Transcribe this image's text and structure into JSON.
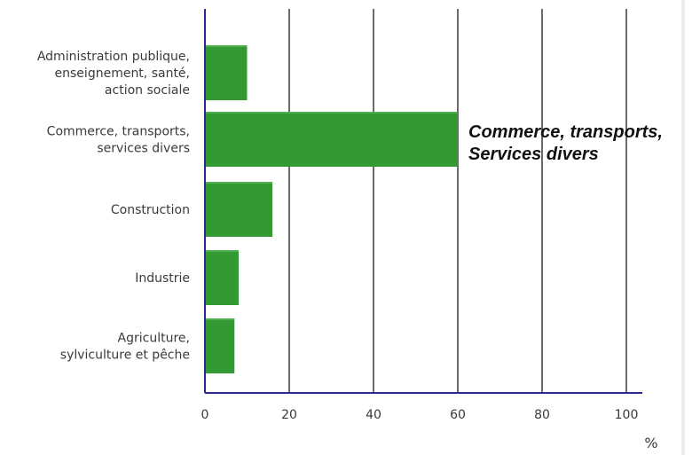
{
  "chart_data": {
    "type": "bar",
    "orientation": "horizontal",
    "categories": [
      [
        "Administration publique,",
        "enseignement, santé,",
        "action sociale"
      ],
      [
        "Commerce, transports,",
        "services divers"
      ],
      [
        "Construction"
      ],
      [
        "Industrie"
      ],
      [
        "Agriculture,",
        "sylviculture et pêche"
      ]
    ],
    "values": [
      10,
      60,
      16,
      8,
      7
    ],
    "xlim": [
      0,
      100
    ],
    "xticks": [
      "0",
      "20",
      "40",
      "60",
      "80",
      "100"
    ],
    "xlabel": "%",
    "grid": "vertical",
    "annotation": [
      "Commerce, transports,",
      "Services divers"
    ],
    "colors": {
      "bar": "#339933",
      "bar_top": "#4fae4f",
      "axis": "#2b2b8f",
      "grid": "#1a1a1a"
    }
  }
}
